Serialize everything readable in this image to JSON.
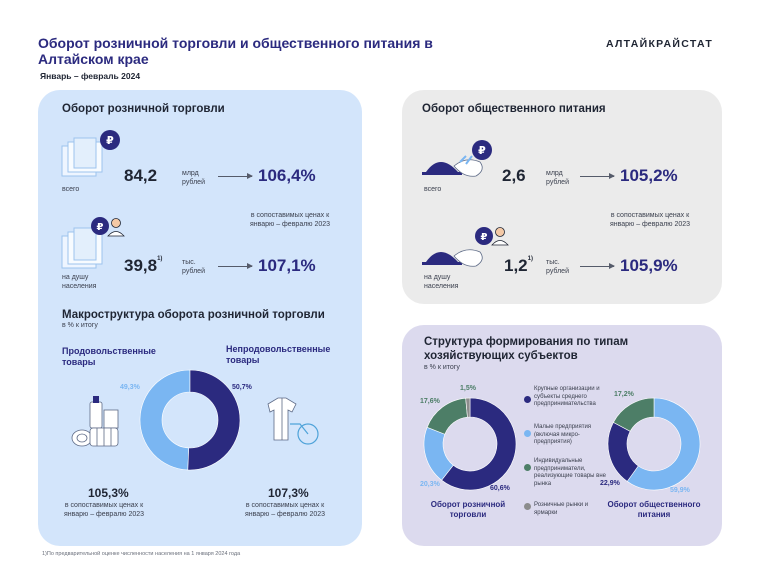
{
  "header": {
    "title": "Оборот розничной торговли и общественного питания в Алтайском крае",
    "subtitle": "Январь – февраль 2024",
    "brand": "АЛТАЙКРАЙСТАТ"
  },
  "retail": {
    "heading": "Оборот розничной торговли",
    "total": {
      "label": "всего",
      "value": "84,2",
      "unit": "млрд рублей",
      "index": "106,4%"
    },
    "comparison_note": "в сопоставимых ценах к январю – февралю 2023",
    "per_capita": {
      "label": "на душу населения",
      "value": "39,8",
      "sup": "1)",
      "unit": "тыс. рублей",
      "index": "107,1%"
    }
  },
  "macro": {
    "heading": "Макроструктура оборота розничной торговли",
    "sub": "в % к итогу",
    "food_label": "Продовольственные товары",
    "nonfood_label": "Непродовольственные товары",
    "food_index": "105,3%",
    "nonfood_index": "107,3%",
    "comparison_note": "в сопоставимых ценах к январю – февралю 2023"
  },
  "food_service": {
    "heading": "Оборот общественного питания",
    "total": {
      "label": "всего",
      "value": "2,6",
      "unit": "млрд рублей",
      "index": "105,2%"
    },
    "comparison_note": "в сопоставимых ценах к январю – февралю 2023",
    "per_capita": {
      "label": "на душу населения",
      "value": "1,2",
      "sup": "1)",
      "unit": "тыс. рублей",
      "index": "105,9%"
    }
  },
  "structure": {
    "heading": "Структура формирования по типам хозяйствующих субъектов",
    "sub": "в % к итогу",
    "legend": [
      {
        "label": "Крупные организации и субъекты среднего предпринимательства",
        "color": "#2b2a7f"
      },
      {
        "label": "Малые предприятия (включая микро-предприятия)",
        "color": "#7ab6f2"
      },
      {
        "label": "Индивидуальные предприниматели, реализующие товары вне рынка",
        "color": "#4d7e67"
      },
      {
        "label": "Розничные рынки и ярмарки",
        "color": "#8c8c8c"
      }
    ],
    "retail_donut_label": "Оборот розничной торговли",
    "food_donut_label": "Оборот общественного питания"
  },
  "footnote": "1)По предварительной оценке численности населения на 1 января 2024 года",
  "chart_data": [
    {
      "type": "pie",
      "name": "macro",
      "categories": [
        "Продовольственные товары",
        "Непродовольственные товары"
      ],
      "values": [
        49.3,
        50.7
      ],
      "value_labels": [
        "49,3%",
        "50,7%"
      ],
      "colors": [
        "#7ab6f2",
        "#2b2a7f"
      ]
    },
    {
      "type": "pie",
      "name": "retail_struct",
      "categories": [
        "Крупные организации и субъекты среднего предпринимательства",
        "Малые предприятия (включая микро-предприятия)",
        "Индивидуальные предприниматели, реализующие товары вне рынка",
        "Розничные рынки и ярмарки"
      ],
      "values": [
        60.6,
        20.3,
        17.6,
        1.5
      ],
      "value_labels": [
        "60,6%",
        "20,3%",
        "17,6%",
        "1,5%"
      ],
      "colors": [
        "#2b2a7f",
        "#7ab6f2",
        "#4d7e67",
        "#8c8c8c"
      ]
    },
    {
      "type": "pie",
      "name": "food_struct",
      "categories": [
        "Малые предприятия (включая микро-предприятия)",
        "Крупные организации и субъекты среднего предпринимательства",
        "Индивидуальные предприниматели, реализующие товары вне рынка"
      ],
      "values": [
        59.9,
        22.9,
        17.2
      ],
      "value_labels": [
        "59,9%",
        "22,9%",
        "17,2%"
      ],
      "colors": [
        "#7ab6f2",
        "#2b2a7f",
        "#4d7e67"
      ]
    }
  ]
}
